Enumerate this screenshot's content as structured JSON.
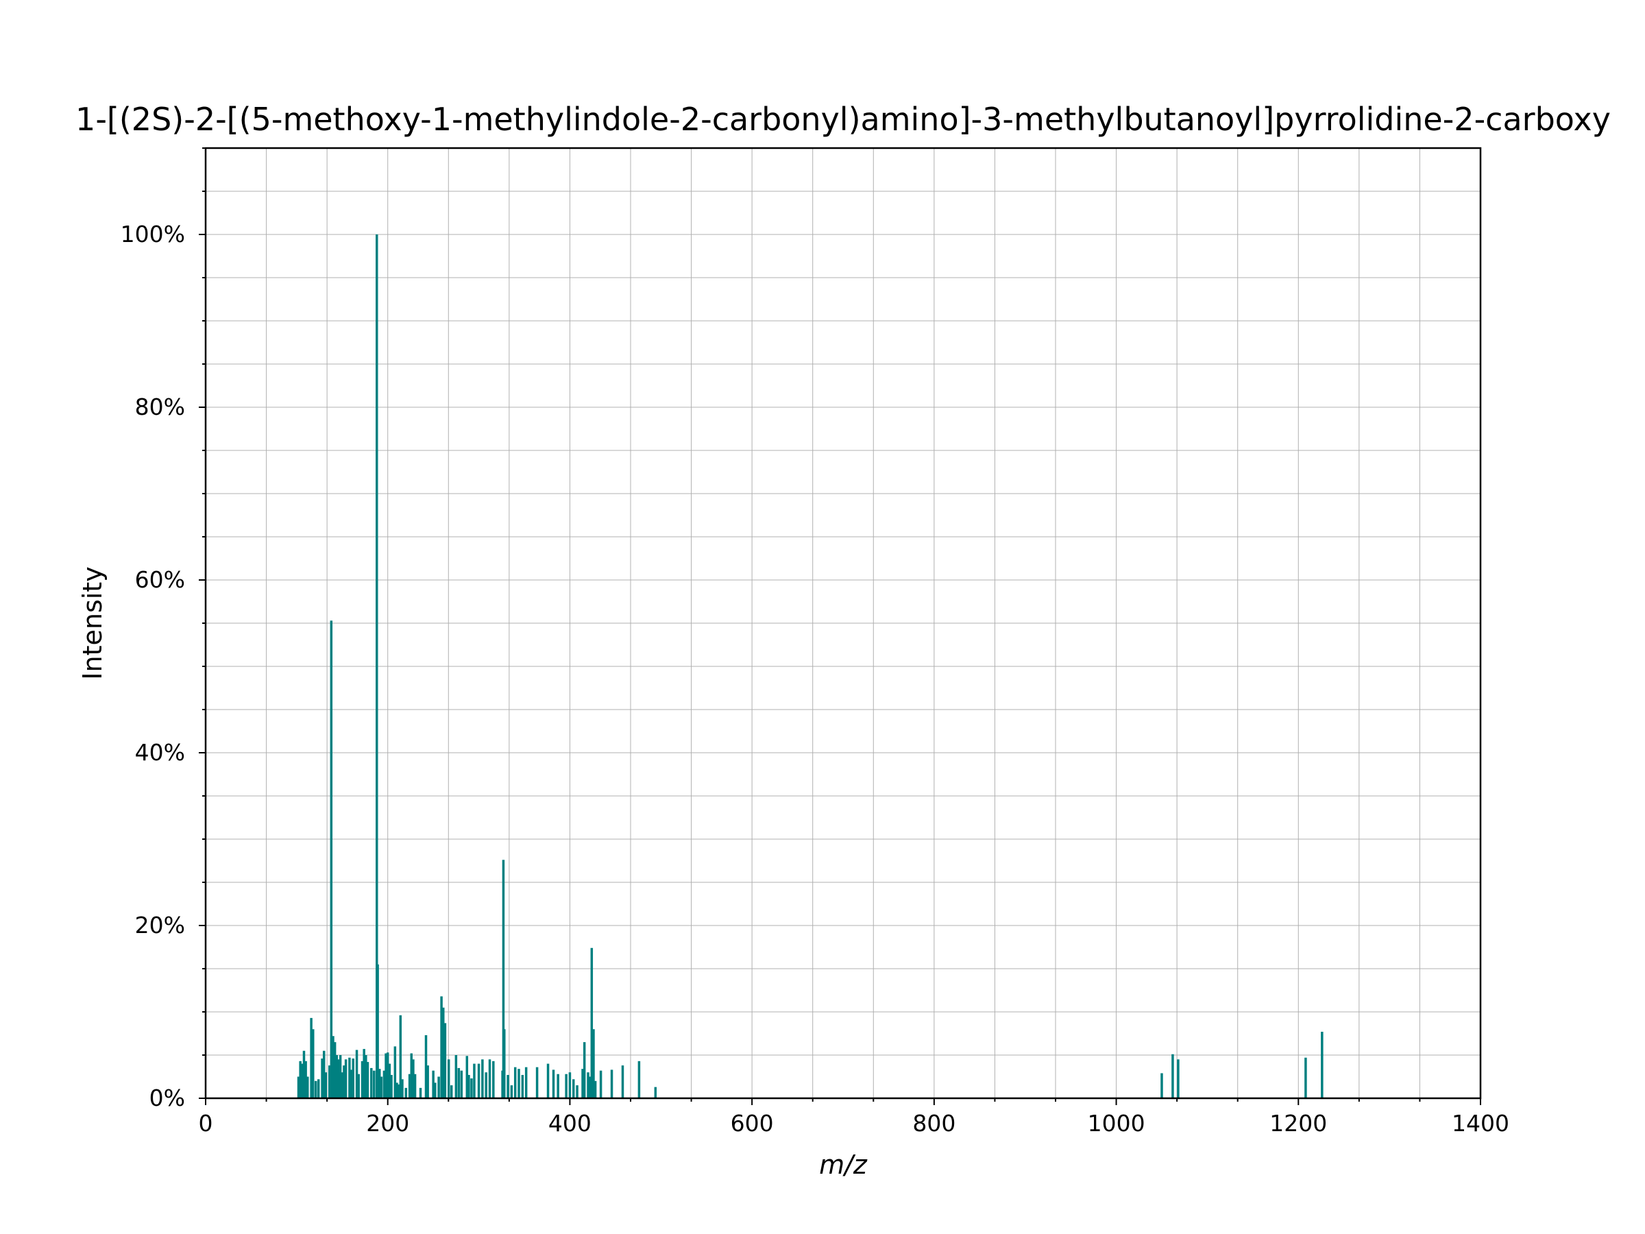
{
  "chart_data": {
    "type": "bar",
    "title": "1-[(2S)-2-[(5-methoxy-1-methylindole-2-carbonyl)amino]-3-methylbutanoyl]pyrrolidine-2-carboxy",
    "xlabel": "m/z",
    "ylabel": "Intensity",
    "xlim": [
      0,
      1400
    ],
    "ylim": [
      0,
      110
    ],
    "x_ticks": [
      "0",
      "200",
      "400",
      "600",
      "800",
      "1000",
      "1200",
      "1400"
    ],
    "y_ticks": [
      "0%",
      "20%",
      "40%",
      "60%",
      "80%",
      "100%"
    ],
    "x_tick_values": [
      0,
      200,
      400,
      600,
      800,
      1000,
      1200,
      1400
    ],
    "y_tick_values": [
      0,
      20,
      40,
      60,
      80,
      100
    ],
    "grid": true,
    "bar_color": "#008080",
    "series": [
      {
        "peaks": [
          [
            102,
            2.5
          ],
          [
            104,
            4.3
          ],
          [
            106,
            4.0
          ],
          [
            108,
            5.5
          ],
          [
            110,
            4.3
          ],
          [
            112,
            2.5
          ],
          [
            116,
            9.3
          ],
          [
            118,
            8.0
          ],
          [
            121,
            2.0
          ],
          [
            124,
            2.2
          ],
          [
            128,
            4.6
          ],
          [
            130,
            5.5
          ],
          [
            132,
            3.0
          ],
          [
            136,
            3.8
          ],
          [
            138,
            55.3
          ],
          [
            140,
            7.2
          ],
          [
            142,
            6.5
          ],
          [
            144,
            5.0
          ],
          [
            146,
            4.5
          ],
          [
            148,
            5.0
          ],
          [
            150,
            3.0
          ],
          [
            152,
            3.8
          ],
          [
            154,
            4.5
          ],
          [
            158,
            4.7
          ],
          [
            160,
            3.3
          ],
          [
            162,
            4.6
          ],
          [
            166,
            5.6
          ],
          [
            168,
            2.8
          ],
          [
            172,
            4.3
          ],
          [
            174,
            5.7
          ],
          [
            176,
            5.0
          ],
          [
            178,
            4.2
          ],
          [
            182,
            3.5
          ],
          [
            185,
            3.2
          ],
          [
            188,
            100
          ],
          [
            189,
            15.5
          ],
          [
            191,
            3.4
          ],
          [
            193,
            2.5
          ],
          [
            196,
            3.2
          ],
          [
            198,
            5.2
          ],
          [
            200,
            5.3
          ],
          [
            202,
            4.0
          ],
          [
            204,
            2.7
          ],
          [
            208,
            6.0
          ],
          [
            210,
            1.8
          ],
          [
            212,
            1.6
          ],
          [
            214,
            9.6
          ],
          [
            216,
            2.2
          ],
          [
            220,
            1.2
          ],
          [
            224,
            2.8
          ],
          [
            226,
            5.2
          ],
          [
            228,
            4.5
          ],
          [
            230,
            2.8
          ],
          [
            236,
            1.2
          ],
          [
            242,
            7.3
          ],
          [
            244,
            3.8
          ],
          [
            250,
            3.2
          ],
          [
            252,
            1.8
          ],
          [
            256,
            2.5
          ],
          [
            259,
            11.8
          ],
          [
            261,
            10.5
          ],
          [
            263,
            8.7
          ],
          [
            267,
            4.5
          ],
          [
            270,
            1.5
          ],
          [
            275,
            5.0
          ],
          [
            278,
            3.5
          ],
          [
            281,
            3.2
          ],
          [
            287,
            4.9
          ],
          [
            289,
            2.7
          ],
          [
            292,
            2.3
          ],
          [
            295,
            4.0
          ],
          [
            300,
            4.0
          ],
          [
            304,
            4.5
          ],
          [
            308,
            3.0
          ],
          [
            312,
            4.5
          ],
          [
            316,
            4.3
          ],
          [
            326,
            3.2
          ],
          [
            327,
            27.6
          ],
          [
            328,
            8.0
          ],
          [
            332,
            2.7
          ],
          [
            336,
            1.5
          ],
          [
            340,
            3.6
          ],
          [
            344,
            3.4
          ],
          [
            348,
            2.7
          ],
          [
            352,
            3.6
          ],
          [
            364,
            3.6
          ],
          [
            376,
            4.0
          ],
          [
            382,
            3.3
          ],
          [
            387,
            2.8
          ],
          [
            396,
            2.8
          ],
          [
            400,
            3.0
          ],
          [
            404,
            2.2
          ],
          [
            408,
            1.5
          ],
          [
            414,
            3.4
          ],
          [
            416,
            6.5
          ],
          [
            420,
            3.0
          ],
          [
            422,
            2.5
          ],
          [
            424,
            17.4
          ],
          [
            426,
            8.0
          ],
          [
            428,
            2.0
          ],
          [
            434,
            3.2
          ],
          [
            446,
            3.3
          ],
          [
            458,
            3.8
          ],
          [
            476,
            4.3
          ],
          [
            494,
            1.3
          ],
          [
            1050,
            2.9
          ],
          [
            1062,
            5.1
          ],
          [
            1068,
            4.5
          ],
          [
            1208,
            4.7
          ],
          [
            1226,
            7.7
          ]
        ]
      }
    ]
  }
}
